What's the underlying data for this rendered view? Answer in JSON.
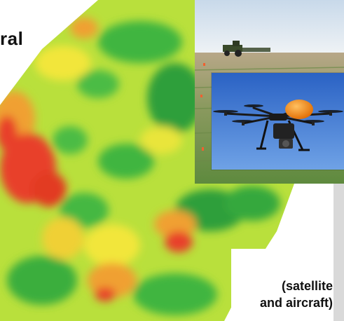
{
  "captions": {
    "top_fragment": "ral",
    "bottom_line1": "(satellite",
    "bottom_line2": "and aircraft)"
  },
  "colors": {
    "dark_green": "#1f9a3a",
    "green": "#3fb540",
    "yellow_green": "#b7e03a",
    "yellow": "#f2e63a",
    "orange": "#f0a030",
    "red": "#e8402a",
    "sky": "#2f6fd0",
    "drone_dome": "#f07a10"
  },
  "images": {
    "heatmap": "crop-vigor-heatmap",
    "field_photo": "tractor-field-photo",
    "drone_photo": "octocopter-drone-photo"
  }
}
